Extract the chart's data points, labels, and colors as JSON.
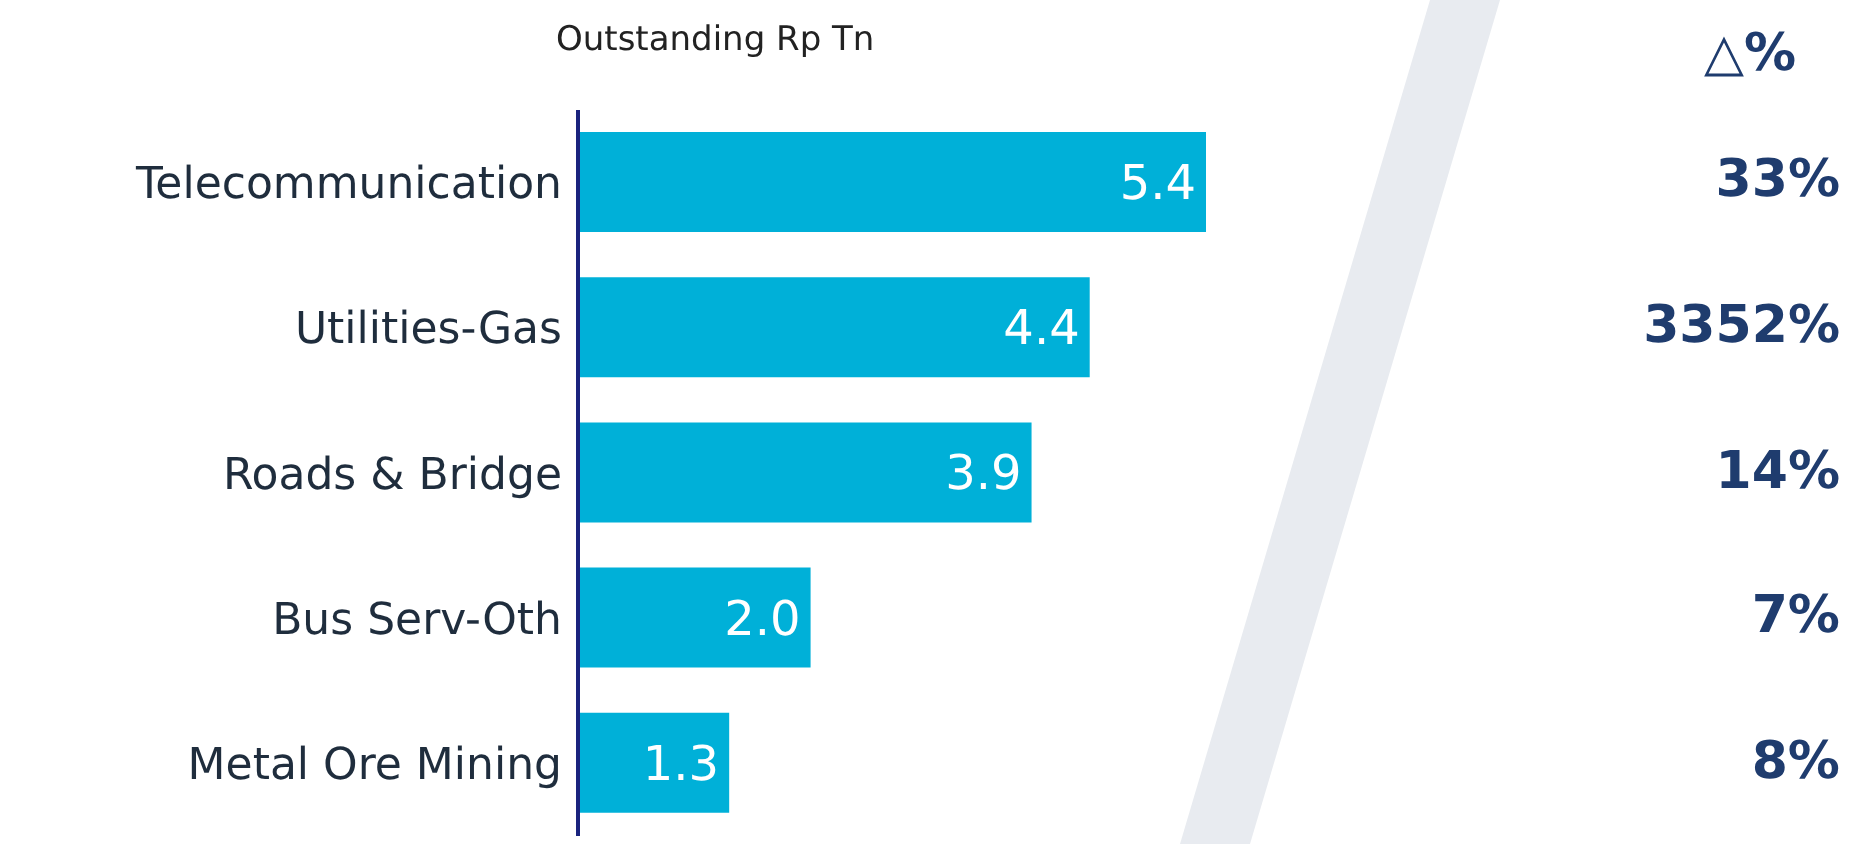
{
  "chart_data": {
    "type": "bar",
    "orientation": "horizontal",
    "title": "Outstanding Rp Tn",
    "categories": [
      "Telecommunication",
      "Utilities-Gas",
      "Roads & Bridge",
      "Bus Serv-Oth",
      "Metal Ore Mining"
    ],
    "values": [
      5.4,
      4.4,
      3.9,
      2.0,
      1.3
    ],
    "value_labels": [
      "5.4",
      "4.4",
      "3.9",
      "2.0",
      "1.3"
    ],
    "color": "#00b0d8",
    "annotations": [
      "△%",
      "33%",
      "3352%",
      "14%",
      "7%",
      "8%"
    ]
  }
}
